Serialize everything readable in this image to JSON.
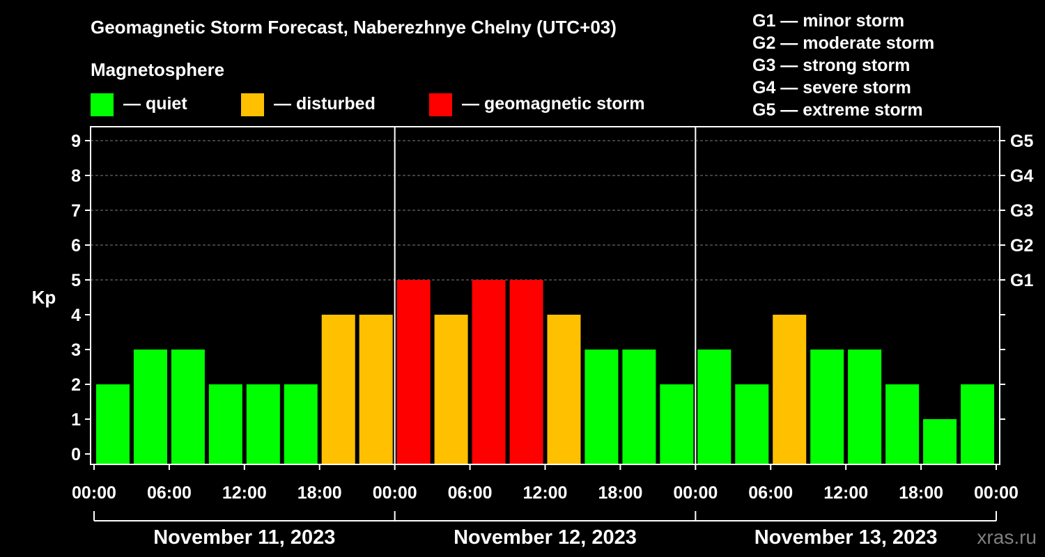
{
  "chart_data": {
    "type": "bar",
    "title": "Geomagnetic Storm Forecast, Naberezhnye Chelny (UTC+03)",
    "subtitle": "Magnetosphere",
    "ylabel": "Kp",
    "xlabel": "",
    "ylim": [
      0,
      9
    ],
    "yticks": [
      0,
      1,
      2,
      3,
      4,
      5,
      6,
      7,
      8,
      9
    ],
    "right_axis": {
      "labels": [
        {
          "kp": 5,
          "label": "G1"
        },
        {
          "kp": 6,
          "label": "G2"
        },
        {
          "kp": 7,
          "label": "G3"
        },
        {
          "kp": 8,
          "label": "G4"
        },
        {
          "kp": 9,
          "label": "G5"
        }
      ]
    },
    "legend": [
      {
        "key": "quiet",
        "label": "— quiet",
        "color": "#00ff00"
      },
      {
        "key": "disturbed",
        "label": "— disturbed",
        "color": "#ffc000"
      },
      {
        "key": "storm",
        "label": "— geomagnetic storm",
        "color": "#ff0000"
      }
    ],
    "storm_scale": [
      "G1 — minor storm",
      "G2 — moderate storm",
      "G3 — strong storm",
      "G4 — severe storm",
      "G5 — extreme storm"
    ],
    "x_tick_labels": [
      "00:00",
      "06:00",
      "12:00",
      "18:00",
      "00:00",
      "06:00",
      "12:00",
      "18:00",
      "00:00",
      "06:00",
      "12:00",
      "18:00",
      "00:00"
    ],
    "days": [
      "November 11, 2023",
      "November 12, 2023",
      "November 13, 2023"
    ],
    "interval_hours": 3,
    "values": [
      2,
      3,
      3,
      2,
      2,
      2,
      4,
      4,
      5,
      4,
      5,
      5,
      4,
      3,
      3,
      2,
      3,
      2,
      4,
      3,
      3,
      2,
      1,
      2
    ],
    "grid": true
  },
  "watermark": "xras.ru",
  "colors": {
    "background": "#000000",
    "text": "#ffffff",
    "quiet": "#00ff00",
    "disturbed": "#ffc000",
    "storm": "#ff0000",
    "grid": "#808080"
  }
}
